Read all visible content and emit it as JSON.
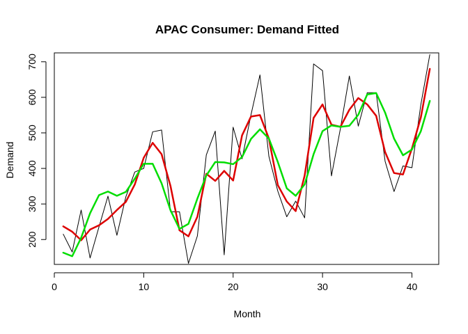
{
  "chart_data": {
    "type": "line",
    "title": "APAC Consumer: Demand Fitted",
    "xlabel": "Month",
    "ylabel": "Demand",
    "xlim": [
      0,
      43
    ],
    "ylim": [
      130,
      725
    ],
    "xticks": [
      0,
      10,
      20,
      30,
      40
    ],
    "yticks": [
      200,
      300,
      400,
      500,
      600,
      700
    ],
    "grid": false,
    "x": [
      1,
      2,
      3,
      4,
      5,
      6,
      7,
      8,
      9,
      10,
      11,
      12,
      13,
      14,
      15,
      16,
      17,
      18,
      19,
      20,
      21,
      22,
      23,
      24,
      25,
      26,
      27,
      28,
      29,
      30,
      31,
      32,
      33,
      34,
      35,
      36,
      37,
      38,
      39,
      40,
      41,
      42
    ],
    "series": [
      {
        "color": "#000000",
        "width": 1,
        "values": [
          215,
          165,
          283,
          148,
          236,
          322,
          212,
          320,
          390,
          400,
          503,
          508,
          278,
          278,
          133,
          210,
          438,
          505,
          157,
          516,
          427,
          551,
          663,
          434,
          336,
          264,
          308,
          261,
          694,
          675,
          379,
          512,
          660,
          519,
          613,
          613,
          420,
          335,
          407,
          402,
          580,
          720
        ]
      },
      {
        "color": "#dd0000",
        "width": 2.5,
        "values": [
          237,
          222,
          198,
          228,
          240,
          258,
          283,
          306,
          355,
          430,
          472,
          440,
          350,
          226,
          209,
          264,
          385,
          365,
          393,
          366,
          493,
          546,
          550,
          484,
          353,
          307,
          280,
          380,
          542,
          580,
          523,
          517,
          565,
          598,
          580,
          548,
          446,
          387,
          383,
          456,
          544,
          680
        ]
      },
      {
        "color": "#00dd00",
        "width": 2.5,
        "values": [
          163,
          153,
          205,
          274,
          325,
          335,
          323,
          334,
          371,
          413,
          413,
          358,
          282,
          230,
          244,
          315,
          380,
          418,
          417,
          412,
          432,
          483,
          510,
          484,
          418,
          344,
          323,
          355,
          440,
          505,
          521,
          517,
          520,
          551,
          608,
          612,
          557,
          484,
          437,
          453,
          505,
          590
        ]
      }
    ]
  }
}
